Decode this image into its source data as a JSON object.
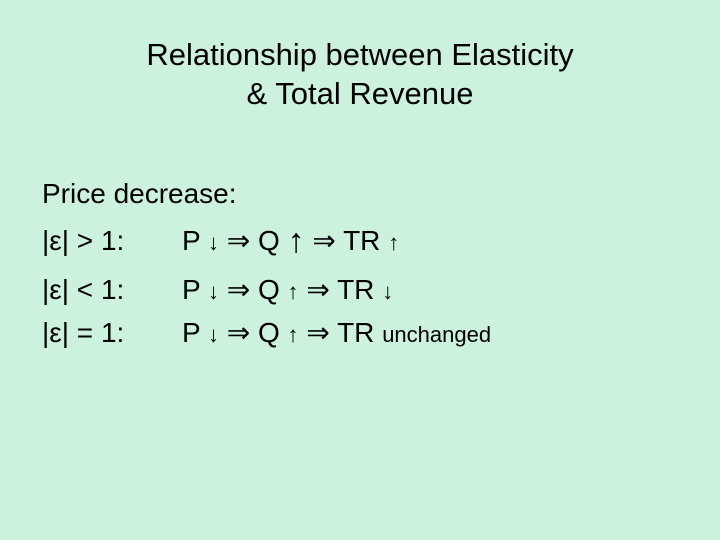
{
  "background_color": "#ccf2dd",
  "text_color": "#000000",
  "font_family": "Arial",
  "title_fontsize": 31,
  "body_fontsize": 28,
  "sub_fontsize": 22,
  "big_arrow_fontsize": 34,
  "glyphs": {
    "down_small": "↓",
    "up_small": "↑",
    "up_big": "↑",
    "implies": "⇒",
    "epsilon": "ε"
  },
  "title": {
    "line1": "Relationship between Elasticity",
    "line2": "& Total Revenue"
  },
  "subheading": "Price decrease:",
  "rows": [
    {
      "condition": "|ε| > 1:",
      "p_label": "P",
      "p_arrow": "↓",
      "implies1": "⇒",
      "q_label": "Q",
      "q_arrow": "↑",
      "q_arrow_big": true,
      "implies2": "⇒",
      "tr_label": "TR",
      "tr_arrow": "↑",
      "tr_extra": ""
    },
    {
      "condition": "|ε| < 1:",
      "p_label": "P",
      "p_arrow": "↓",
      "implies1": "⇒",
      "q_label": "Q",
      "q_arrow": "↑",
      "q_arrow_big": false,
      "implies2": "⇒",
      "tr_label": "TR",
      "tr_arrow": "↓",
      "tr_extra": ""
    },
    {
      "condition": "|ε| = 1:",
      "p_label": "P",
      "p_arrow": "↓",
      "implies1": "⇒",
      "q_label": "Q",
      "q_arrow": "↑",
      "q_arrow_big": false,
      "implies2": "⇒",
      "tr_label": "TR",
      "tr_arrow": "",
      "tr_extra": "unchanged"
    }
  ]
}
